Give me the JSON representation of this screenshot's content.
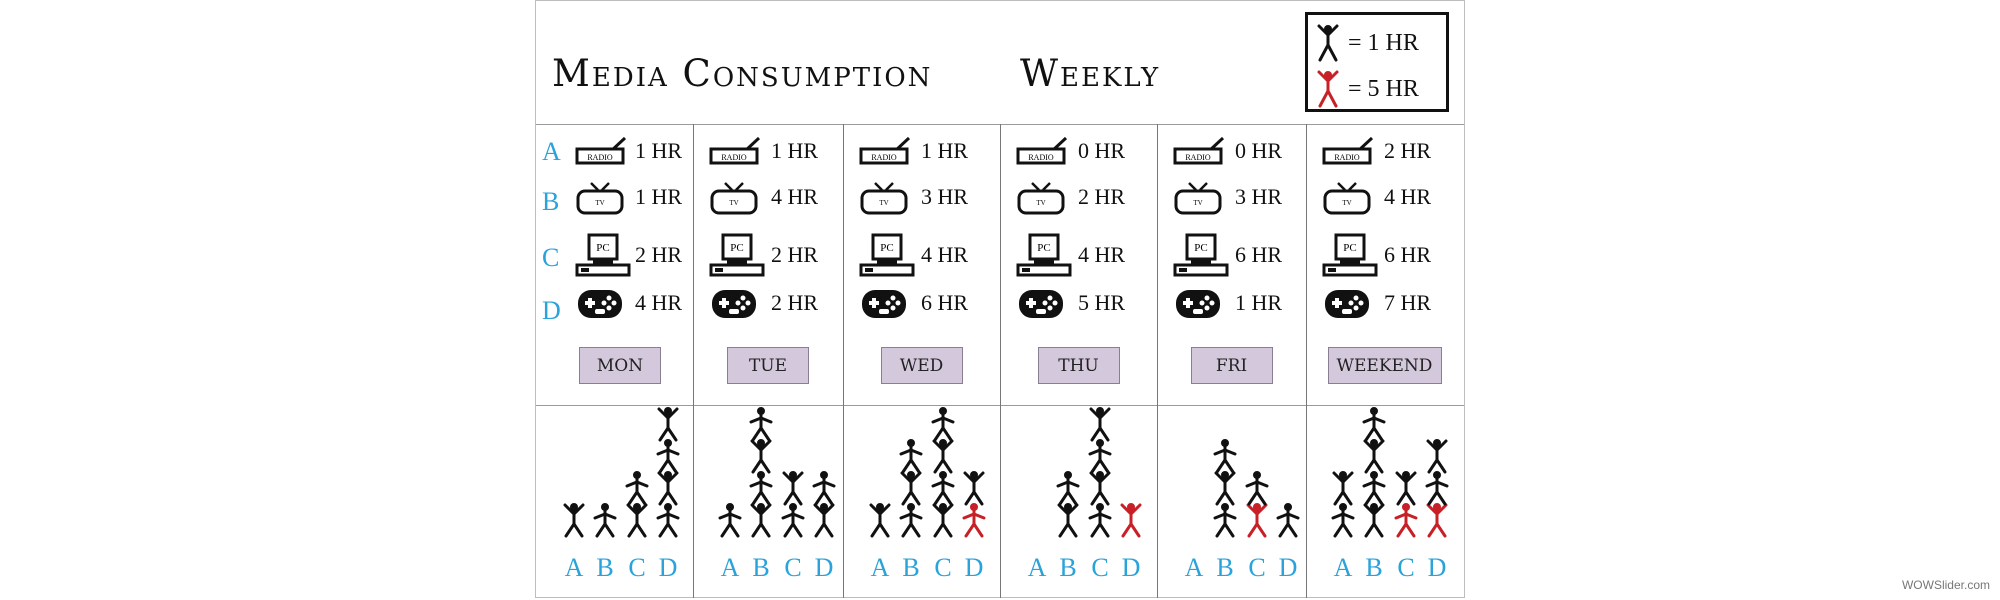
{
  "header": {
    "title_left": "Media Consumption",
    "title_right": "Weekly"
  },
  "legend": [
    {
      "label": "= 1 HR",
      "color": "#111111",
      "hours": 1
    },
    {
      "label": "= 5 HR",
      "color": "#c82027",
      "hours": 5
    }
  ],
  "row_letters": [
    "A",
    "B",
    "C",
    "D"
  ],
  "media": [
    {
      "key": "A",
      "icon": "radio-icon",
      "text": "RADIO"
    },
    {
      "key": "B",
      "icon": "tv-icon",
      "text": "TV"
    },
    {
      "key": "C",
      "icon": "pc-icon",
      "text": "PC"
    },
    {
      "key": "D",
      "icon": "gamepad-icon",
      "text": ""
    }
  ],
  "days": [
    {
      "label": "MON",
      "hours": [
        "1 HR",
        "1 HR",
        "2 HR",
        "4 HR"
      ]
    },
    {
      "label": "TUE",
      "hours": [
        "1 HR",
        "4 HR",
        "2 HR",
        "2 HR"
      ]
    },
    {
      "label": "WED",
      "hours": [
        "1 HR",
        "3 HR",
        "4 HR",
        "6 HR"
      ]
    },
    {
      "label": "THU",
      "hours": [
        "0 HR",
        "2 HR",
        "4 HR",
        "5 HR"
      ]
    },
    {
      "label": "FRI",
      "hours": [
        "0 HR",
        "3 HR",
        "6 HR",
        "1 HR"
      ]
    },
    {
      "label": "WEEKEND",
      "hours": [
        "2 HR",
        "4 HR",
        "6 HR",
        "7 HR"
      ]
    }
  ],
  "chart_data": {
    "type": "bar",
    "title": "Media Consumption Weekly",
    "categories": [
      "A",
      "B",
      "C",
      "D"
    ],
    "units": "HR",
    "series": [
      {
        "name": "MON",
        "values": [
          1,
          1,
          2,
          4
        ]
      },
      {
        "name": "TUE",
        "values": [
          1,
          4,
          2,
          2
        ]
      },
      {
        "name": "WED",
        "values": [
          1,
          3,
          4,
          6
        ]
      },
      {
        "name": "THU",
        "values": [
          0,
          2,
          4,
          5
        ]
      },
      {
        "name": "FRI",
        "values": [
          0,
          3,
          6,
          1
        ]
      },
      {
        "name": "WEEKEND",
        "values": [
          2,
          4,
          6,
          7
        ]
      }
    ],
    "legend": [
      "= 1 HR",
      "= 5 HR"
    ],
    "legend_position": "top-right"
  },
  "watermark": "WOWSlider.com"
}
